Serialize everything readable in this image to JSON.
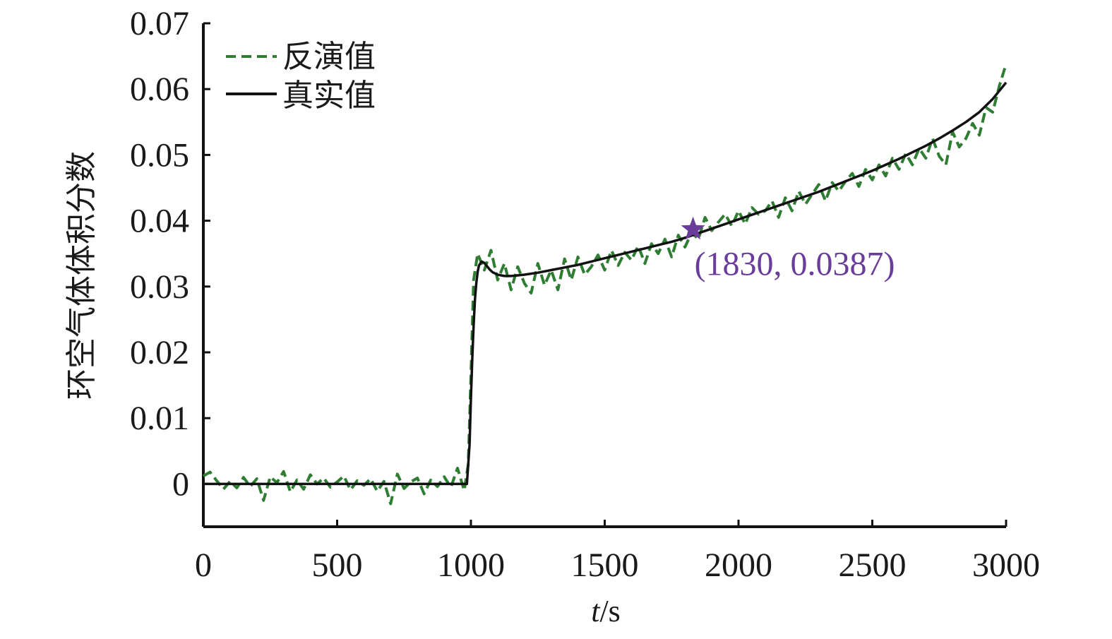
{
  "chart_data": {
    "type": "line",
    "title": "",
    "xlabel_italic": "t",
    "xlabel_unit": "/s",
    "ylabel": "环空气体体积分数",
    "xlim": [
      0,
      3000
    ],
    "ylim": [
      -0.0065,
      0.07
    ],
    "x_ticks": [
      "0",
      "500",
      "1000",
      "1500",
      "2000",
      "2500",
      "3000"
    ],
    "y_ticks": [
      "0",
      "0.01",
      "0.02",
      "0.03",
      "0.04",
      "0.05",
      "0.06",
      "0.07"
    ],
    "grid": false,
    "legend_position": "top-left",
    "series": [
      {
        "name": "反演值",
        "style": "dashed",
        "color": "#2e7d32",
        "x": [
          0,
          25,
          50,
          75,
          100,
          125,
          150,
          175,
          200,
          225,
          250,
          275,
          300,
          325,
          350,
          375,
          400,
          425,
          450,
          475,
          500,
          525,
          550,
          575,
          600,
          625,
          650,
          675,
          700,
          725,
          750,
          775,
          800,
          825,
          850,
          875,
          900,
          925,
          950,
          975,
          990,
          1000,
          1010,
          1025,
          1050,
          1075,
          1100,
          1125,
          1150,
          1175,
          1200,
          1225,
          1250,
          1275,
          1300,
          1325,
          1350,
          1375,
          1400,
          1425,
          1450,
          1475,
          1500,
          1525,
          1550,
          1575,
          1600,
          1625,
          1650,
          1675,
          1700,
          1725,
          1750,
          1775,
          1800,
          1825,
          1850,
          1875,
          1900,
          1925,
          1950,
          1975,
          2000,
          2025,
          2050,
          2075,
          2100,
          2125,
          2150,
          2175,
          2200,
          2225,
          2250,
          2275,
          2300,
          2325,
          2350,
          2375,
          2400,
          2425,
          2450,
          2475,
          2500,
          2525,
          2550,
          2575,
          2600,
          2625,
          2650,
          2675,
          2700,
          2725,
          2750,
          2775,
          2800,
          2825,
          2850,
          2875,
          2900,
          2925,
          2950,
          2975,
          3000
        ],
        "values": [
          0.0012,
          0.0018,
          0.0005,
          -0.0008,
          0.0004,
          -0.0006,
          0.001,
          -0.0004,
          0.0008,
          -0.0025,
          0.0011,
          0.0002,
          0.0019,
          -0.0012,
          0.0006,
          -0.0008,
          0.0014,
          0.0,
          0.0009,
          -0.0005,
          0.0003,
          0.0012,
          -0.0009,
          0.0005,
          -0.0002,
          0.0008,
          -0.0011,
          0.0004,
          -0.003,
          0.0015,
          -0.0007,
          0.0003,
          0.0009,
          -0.0015,
          0.0006,
          -0.0004,
          0.0011,
          -0.0005,
          0.0024,
          -0.001,
          0.003,
          0.0165,
          0.031,
          0.035,
          0.0325,
          0.0355,
          0.031,
          0.0335,
          0.0295,
          0.033,
          0.0305,
          0.029,
          0.0335,
          0.0302,
          0.0325,
          0.0295,
          0.0342,
          0.031,
          0.0345,
          0.0318,
          0.033,
          0.0348,
          0.0325,
          0.0355,
          0.0332,
          0.0352,
          0.034,
          0.0362,
          0.0335,
          0.0365,
          0.035,
          0.0372,
          0.0345,
          0.0378,
          0.036,
          0.0382,
          0.0372,
          0.0405,
          0.0385,
          0.0398,
          0.041,
          0.0392,
          0.0415,
          0.0395,
          0.042,
          0.041,
          0.0415,
          0.043,
          0.0405,
          0.0435,
          0.0415,
          0.0445,
          0.0425,
          0.044,
          0.0455,
          0.043,
          0.0458,
          0.0445,
          0.046,
          0.0472,
          0.0452,
          0.0478,
          0.0462,
          0.0485,
          0.0468,
          0.0495,
          0.0478,
          0.0502,
          0.0485,
          0.051,
          0.0495,
          0.0525,
          0.0498,
          0.0485,
          0.0535,
          0.0512,
          0.0525,
          0.0548,
          0.053,
          0.0572,
          0.0565,
          0.0605,
          0.0638
        ]
      },
      {
        "name": "真实值",
        "style": "solid",
        "color": "#111111",
        "x": [
          0,
          100,
          200,
          300,
          400,
          500,
          600,
          700,
          800,
          900,
          985,
          995,
          1000,
          1005,
          1010,
          1015,
          1020,
          1025,
          1030,
          1040,
          1050,
          1060,
          1070,
          1080,
          1100,
          1125,
          1150,
          1175,
          1200,
          1250,
          1300,
          1350,
          1400,
          1450,
          1500,
          1550,
          1600,
          1650,
          1700,
          1750,
          1800,
          1850,
          1900,
          1950,
          2000,
          2050,
          2100,
          2150,
          2200,
          2250,
          2300,
          2350,
          2400,
          2450,
          2500,
          2550,
          2600,
          2650,
          2700,
          2750,
          2800,
          2850,
          2900,
          2950,
          3000
        ],
        "values": [
          0.0,
          0.0,
          0.0,
          0.0,
          0.0,
          0.0,
          0.0,
          0.0,
          0.0,
          0.0,
          0.0,
          0.006,
          0.013,
          0.019,
          0.024,
          0.028,
          0.0305,
          0.0322,
          0.0332,
          0.0338,
          0.0336,
          0.0331,
          0.0326,
          0.0322,
          0.0318,
          0.0316,
          0.0316,
          0.0317,
          0.0318,
          0.0321,
          0.0325,
          0.0329,
          0.0333,
          0.0338,
          0.0343,
          0.0348,
          0.0353,
          0.0358,
          0.0363,
          0.0368,
          0.0374,
          0.0381,
          0.0388,
          0.0395,
          0.0402,
          0.0409,
          0.0416,
          0.0423,
          0.043,
          0.0437,
          0.0444,
          0.0452,
          0.046,
          0.0468,
          0.0476,
          0.0485,
          0.0494,
          0.0504,
          0.0514,
          0.0525,
          0.0537,
          0.055,
          0.0565,
          0.0585,
          0.061
        ]
      }
    ],
    "annotations": [
      {
        "x": 1830,
        "y": 0.0387,
        "marker": "star",
        "color": "#6a3d9a",
        "label": "(1830, 0.0387)"
      }
    ]
  }
}
